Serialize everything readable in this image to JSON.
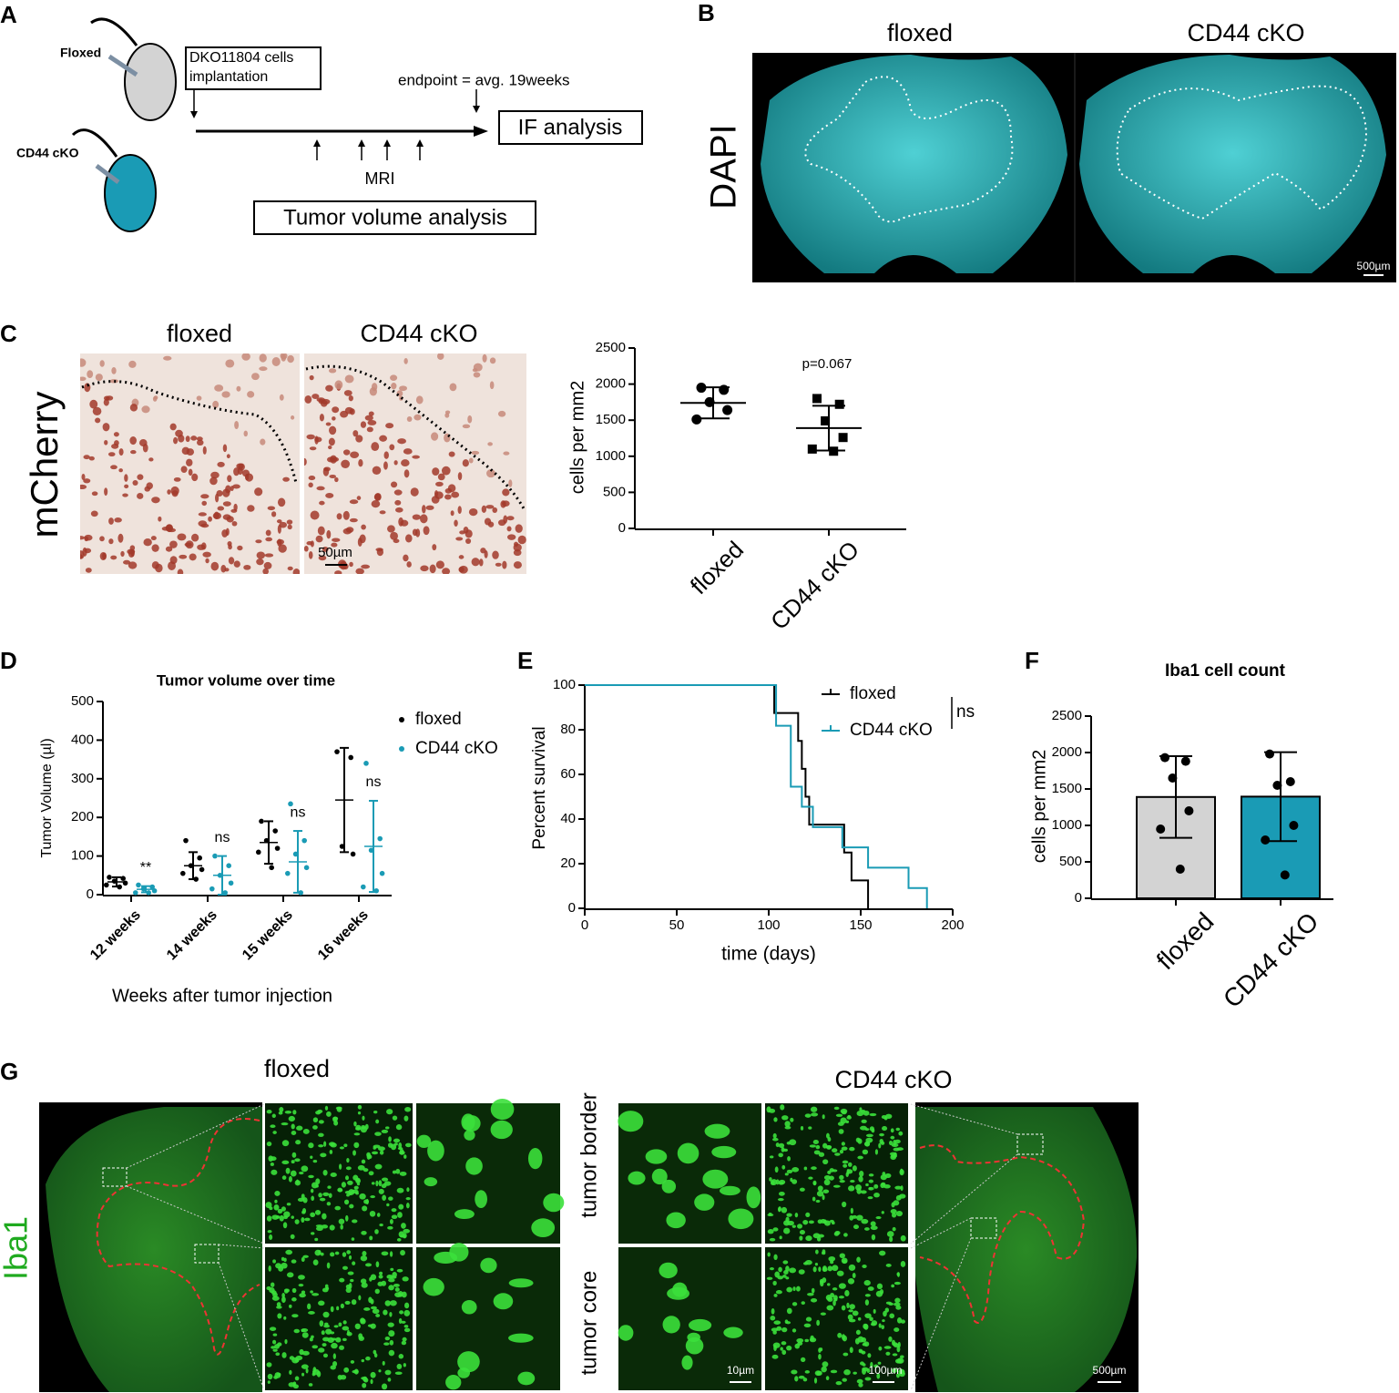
{
  "panel_labels": [
    "A",
    "B",
    "C",
    "D",
    "E",
    "F",
    "G"
  ],
  "panel_a": {
    "mouse_1": "Floxed",
    "mouse_2": "CD44 cKO",
    "implant": [
      "DKO11804 cells",
      "implantation"
    ],
    "endpoint": "endpoint = avg. 19weeks",
    "readout_1": "IF analysis",
    "timepoints": "MRI",
    "readout_2": "Tumor volume analysis"
  },
  "panel_b": {
    "columns": [
      "floxed",
      "CD44 cKO"
    ],
    "stain": "DAPI",
    "scale": "500µm"
  },
  "panel_c": {
    "columns": [
      "floxed",
      "CD44 cKO"
    ],
    "stain": "mCherry",
    "scale": "50µm"
  },
  "panel_g": {
    "columns": [
      "floxed",
      "CD44 cKO"
    ],
    "stain": "Iba1",
    "rows": [
      "tumor border",
      "tumor core"
    ],
    "scales": [
      "10µm",
      "100µm",
      "500µm"
    ]
  },
  "chart_data": [
    {
      "type": "dot",
      "categories": [
        "floxed",
        "CD44 cKO"
      ],
      "markers": [
        "circle",
        "square"
      ],
      "color": "#000000",
      "points": [
        [
          1950,
          1920,
          1750,
          1640,
          1510
        ],
        [
          1800,
          1720,
          1490,
          1260,
          1100,
          1070
        ]
      ],
      "mean": [
        1740,
        1390
      ],
      "sd": [
        215,
        310
      ],
      "ylabel": "cells per mm2",
      "annotation": "p=0.067",
      "ylim": [
        0,
        2500
      ],
      "yticks": [
        0,
        500,
        1000,
        1500,
        2000,
        2500
      ]
    },
    {
      "type": "grouped_dot",
      "title": "Tumor volume over time",
      "ylabel": "Tumor Volume (µl)",
      "xlabel": "Weeks after tumor injection",
      "categories": [
        "12 weeks",
        "14 weeks",
        "15 weeks",
        "16 weeks"
      ],
      "series": [
        {
          "name": "floxed",
          "color": "#000000",
          "points": [
            [
              45,
              42,
              35,
              30,
              25,
              20
            ],
            [
              140,
              95,
              75,
              65,
              55,
              40
            ],
            [
              190,
              165,
              140,
              120,
              110,
              70
            ],
            [
              370,
              355,
              125,
              105
            ]
          ],
          "mean": [
            33,
            75,
            135,
            245
          ],
          "sd": [
            12,
            35,
            55,
            135
          ]
        },
        {
          "name": "CD44 cKO",
          "color": "#1a9bb5",
          "points": [
            [
              25,
              20,
              15,
              10,
              5,
              5
            ],
            [
              100,
              75,
              50,
              30,
              15,
              5
            ],
            [
              235,
              140,
              105,
              70,
              55,
              5
            ],
            [
              340,
              145,
              115,
              55,
              20,
              10
            ]
          ],
          "mean": [
            14,
            50,
            85,
            125
          ],
          "sd": [
            8,
            50,
            80,
            118
          ]
        }
      ],
      "annotations": [
        "**",
        "ns",
        "ns",
        "ns"
      ],
      "ylim": [
        0,
        500
      ],
      "yticks": [
        0,
        100,
        200,
        300,
        400,
        500
      ]
    },
    {
      "type": "survival",
      "xlabel": "time (days)",
      "ylabel": "Percent survival",
      "legend_note": "ns",
      "series": [
        {
          "name": "floxed",
          "color": "#000000",
          "x": [
            0,
            103,
            116,
            118,
            120,
            122,
            141,
            145,
            154
          ],
          "values": [
            100,
            87.5,
            75,
            62.5,
            50,
            37.5,
            25,
            12.5,
            0
          ]
        },
        {
          "name": "CD44 cKO",
          "color": "#1a9bb5",
          "x": [
            0,
            104,
            112,
            118,
            124,
            140,
            154,
            176,
            186
          ],
          "values": [
            100,
            81.8,
            54.5,
            45.5,
            36.4,
            27.3,
            18.2,
            9.1,
            0
          ]
        }
      ],
      "xlim": [
        0,
        200
      ],
      "xticks": [
        0,
        50,
        100,
        150,
        200
      ],
      "ylim": [
        0,
        100
      ],
      "yticks": [
        0,
        20,
        40,
        60,
        80,
        100
      ]
    },
    {
      "type": "bar",
      "title": "Iba1 cell count",
      "ylabel": "cells per mm2",
      "categories": [
        "floxed",
        "CD44 cKO"
      ],
      "values": [
        1390,
        1395
      ],
      "sd": [
        560,
        610
      ],
      "colors": [
        "#d3d3d3",
        "#1a9bb5"
      ],
      "points": [
        [
          1930,
          1880,
          1650,
          1200,
          950,
          400
        ],
        [
          1980,
          1600,
          1550,
          1000,
          800,
          320
        ]
      ],
      "ylim": [
        0,
        2500
      ],
      "yticks": [
        0,
        500,
        1000,
        1500,
        2000,
        2500
      ]
    }
  ]
}
